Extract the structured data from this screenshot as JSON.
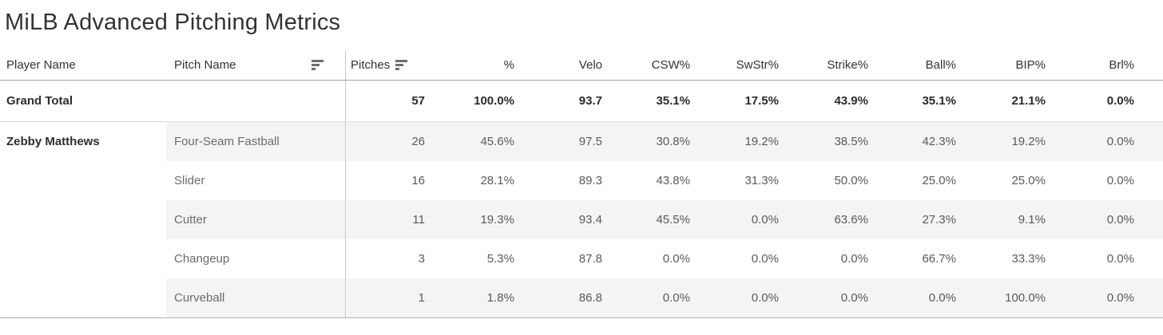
{
  "title": "MiLB Advanced Pitching Metrics",
  "colors": {
    "title_text": "#333333",
    "band_stripe": "#f4f4f4",
    "header_rule": "#a6a6a6",
    "column_divider": "#c9c9c9",
    "bottom_rule": "#b0b0b0",
    "data_text": "#5a5a5a",
    "bold_text": "#2e2e2e"
  },
  "table": {
    "columns": [
      {
        "label": "Player Name"
      },
      {
        "label": "Pitch Name",
        "sort_icon": "sort-descending"
      },
      {
        "label": "Pitches",
        "sort_icon": "sort-descending"
      },
      {
        "label": "%"
      },
      {
        "label": "Velo"
      },
      {
        "label": "CSW%"
      },
      {
        "label": "SwStr%"
      },
      {
        "label": "Strike%"
      },
      {
        "label": "Ball%"
      },
      {
        "label": "BIP%"
      },
      {
        "label": "Brl%"
      }
    ],
    "grand_total": {
      "label": "Grand Total",
      "values": [
        "57",
        "100.0%",
        "93.7",
        "35.1%",
        "17.5%",
        "43.9%",
        "35.1%",
        "21.1%",
        "0.0%"
      ]
    },
    "groups": [
      {
        "player": "Zebby Matthews",
        "rows": [
          {
            "pitch": "Four-Seam Fastball",
            "values": [
              "26",
              "45.6%",
              "97.5",
              "30.8%",
              "19.2%",
              "38.5%",
              "42.3%",
              "19.2%",
              "0.0%"
            ]
          },
          {
            "pitch": "Slider",
            "values": [
              "16",
              "28.1%",
              "89.3",
              "43.8%",
              "31.3%",
              "50.0%",
              "25.0%",
              "25.0%",
              "0.0%"
            ]
          },
          {
            "pitch": "Cutter",
            "values": [
              "11",
              "19.3%",
              "93.4",
              "45.5%",
              "0.0%",
              "63.6%",
              "27.3%",
              "9.1%",
              "0.0%"
            ]
          },
          {
            "pitch": "Changeup",
            "values": [
              "3",
              "5.3%",
              "87.8",
              "0.0%",
              "0.0%",
              "0.0%",
              "66.7%",
              "33.3%",
              "0.0%"
            ]
          },
          {
            "pitch": "Curveball",
            "values": [
              "1",
              "1.8%",
              "86.8",
              "0.0%",
              "0.0%",
              "0.0%",
              "0.0%",
              "100.0%",
              "0.0%"
            ]
          }
        ]
      }
    ]
  },
  "chart_data": {
    "type": "table",
    "title": "MiLB Advanced Pitching Metrics",
    "columns": [
      "Player Name",
      "Pitch Name",
      "Pitches",
      "%",
      "Velo",
      "CSW%",
      "SwStr%",
      "Strike%",
      "Ball%",
      "BIP%",
      "Brl%"
    ],
    "rows": [
      [
        "Grand Total",
        "",
        57,
        "100.0%",
        93.7,
        "35.1%",
        "17.5%",
        "43.9%",
        "35.1%",
        "21.1%",
        "0.0%"
      ],
      [
        "Zebby Matthews",
        "Four-Seam Fastball",
        26,
        "45.6%",
        97.5,
        "30.8%",
        "19.2%",
        "38.5%",
        "42.3%",
        "19.2%",
        "0.0%"
      ],
      [
        "Zebby Matthews",
        "Slider",
        16,
        "28.1%",
        89.3,
        "43.8%",
        "31.3%",
        "50.0%",
        "25.0%",
        "25.0%",
        "0.0%"
      ],
      [
        "Zebby Matthews",
        "Cutter",
        11,
        "19.3%",
        93.4,
        "45.5%",
        "0.0%",
        "63.6%",
        "27.3%",
        "9.1%",
        "0.0%"
      ],
      [
        "Zebby Matthews",
        "Changeup",
        3,
        "5.3%",
        87.8,
        "0.0%",
        "0.0%",
        "0.0%",
        "66.7%",
        "33.3%",
        "0.0%"
      ],
      [
        "Zebby Matthews",
        "Curveball",
        1,
        "1.8%",
        86.8,
        "0.0%",
        "0.0%",
        "0.0%",
        "0.0%",
        "100.0%",
        "0.0%"
      ]
    ],
    "sorted_by": "Pitches descending",
    "legend_position": "none",
    "grid": "row-banding"
  }
}
